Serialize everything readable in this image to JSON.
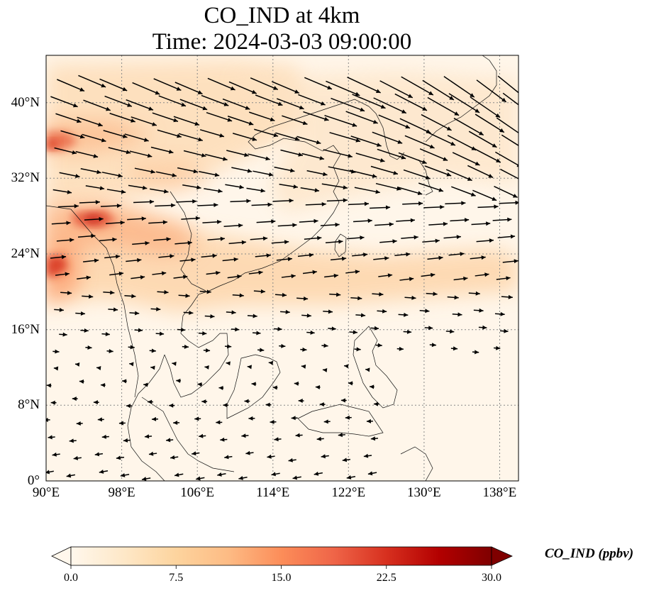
{
  "title_line1": "CO_IND at 4km",
  "title_line2": "Time: 2024-03-03 09:00:00",
  "map": {
    "projection": "PlateCarree",
    "lon_range": [
      90,
      140
    ],
    "lat_range": [
      0,
      45
    ],
    "gridlines": "dotted",
    "lat_ticks": [
      {
        "value": 0,
        "label": "0°"
      },
      {
        "value": 8,
        "label": "8°N"
      },
      {
        "value": 16,
        "label": "16°N"
      },
      {
        "value": 24,
        "label": "24°N"
      },
      {
        "value": 32,
        "label": "32°N"
      },
      {
        "value": 40,
        "label": "40°N"
      }
    ],
    "lon_ticks": [
      {
        "value": 90,
        "label": "90°E"
      },
      {
        "value": 98,
        "label": "98°E"
      },
      {
        "value": 106,
        "label": "106°E"
      },
      {
        "value": 114,
        "label": "114°E"
      },
      {
        "value": 122,
        "label": "122°E"
      },
      {
        "value": 130,
        "label": "130°E"
      },
      {
        "value": 138,
        "label": "138°E"
      }
    ],
    "vectors": "wind arrows: westerlies north of ~20°N, easterlies to the south",
    "hotspots_ppbv": [
      {
        "lon": 90.5,
        "lat": 35.5,
        "value": 22
      },
      {
        "lon": 96.5,
        "lat": 27.8,
        "value": 21
      },
      {
        "lon": 90.8,
        "lat": 23.2,
        "value": 24
      }
    ]
  },
  "colorbar": {
    "label": "CO_IND (ppbv)",
    "colormap": "OrRd",
    "range": [
      0,
      30
    ],
    "extend": "both",
    "ticks": [
      "0.0",
      "7.5",
      "15.0",
      "22.5",
      "30.0"
    ],
    "colors": [
      "#fff7ec",
      "#fee8c8",
      "#fdd49e",
      "#fdbb84",
      "#fc8d59",
      "#ef6548",
      "#d7301f",
      "#b30000",
      "#7f0000"
    ]
  }
}
